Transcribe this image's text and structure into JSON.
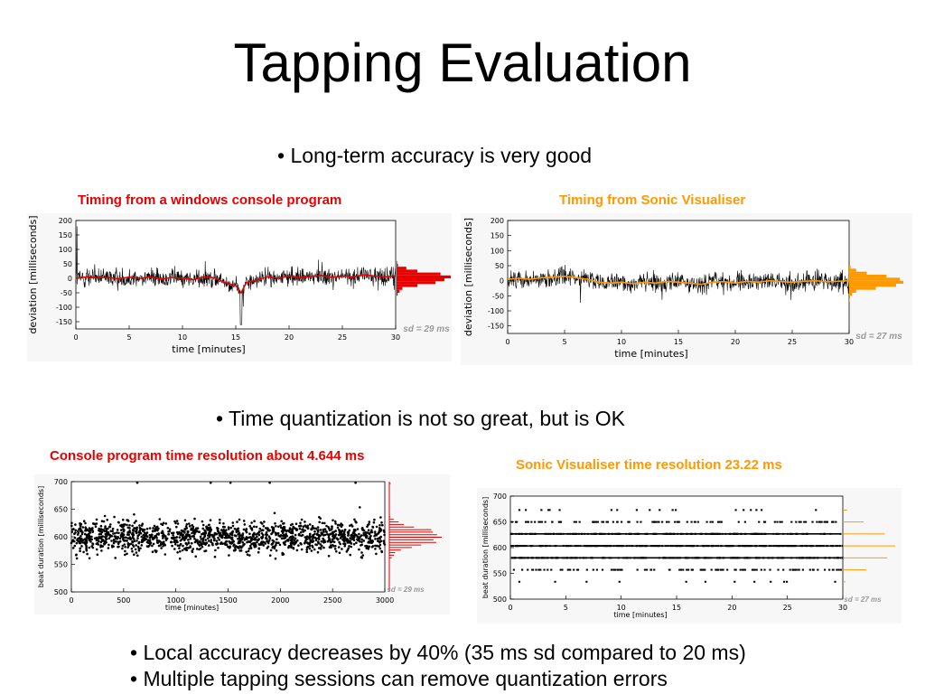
{
  "slide": {
    "title": "Tapping Evaluation",
    "bullet1": "• Long-term accuracy is very good",
    "bullet2": "• Time quantization is not so great, but is OK",
    "bullet3": "• Local accuracy decreases by 40% (35 ms sd compared to 20 ms)",
    "bullet4": "• Multiple tapping sessions can remove quantization errors"
  },
  "colors": {
    "red": "#e60000",
    "orange": "#ff9900",
    "black": "#000000"
  },
  "chart_data": [
    {
      "id": "console-deviation",
      "type": "line",
      "title": "Timing from a windows console program",
      "title_color": "#e60000",
      "xlabel": "time [minutes]",
      "ylabel": "deviation [milliseconds]",
      "xlim": [
        0,
        30
      ],
      "ylim": [
        -175,
        200
      ],
      "xticks": [
        "0",
        "5",
        "10",
        "15",
        "20",
        "25",
        "30"
      ],
      "yticks": [
        "200",
        "150",
        "100",
        "50",
        "0",
        "-50",
        "-100",
        "-150"
      ],
      "annotation": "sd = 29 ms",
      "smooth_color": "#e60000",
      "smooth_series": {
        "x": [
          0,
          1,
          2,
          3,
          4,
          5,
          6,
          7,
          8,
          9,
          10,
          11,
          12,
          13,
          14,
          15,
          15.5,
          16,
          17,
          18,
          19,
          20,
          21,
          22,
          23,
          24,
          25,
          26,
          27,
          28,
          29,
          30
        ],
        "y": [
          0,
          5,
          2,
          3,
          -2,
          4,
          0,
          5,
          -3,
          3,
          0,
          -5,
          5,
          2,
          -15,
          -25,
          -50,
          -15,
          -5,
          5,
          0,
          8,
          3,
          5,
          10,
          3,
          8,
          5,
          12,
          8,
          5,
          8
        ]
      }
    },
    {
      "id": "sonic-deviation",
      "type": "line",
      "title": "Timing from Sonic Visualiser",
      "title_color": "#ff9900",
      "xlabel": "time [minutes]",
      "ylabel": "deviation [milliseconds]",
      "xlim": [
        0,
        30
      ],
      "ylim": [
        -175,
        200
      ],
      "xticks": [
        "0",
        "5",
        "10",
        "15",
        "20",
        "25",
        "30"
      ],
      "yticks": [
        "200",
        "150",
        "100",
        "50",
        "0",
        "-50",
        "-100",
        "-150"
      ],
      "annotation": "sd = 27 ms",
      "smooth_color": "#ff9900",
      "smooth_series": {
        "x": [
          0,
          1,
          2,
          3,
          4,
          5,
          6,
          7,
          8,
          9,
          10,
          11,
          12,
          13,
          14,
          15,
          16,
          17,
          18,
          19,
          20,
          21,
          22,
          23,
          24,
          25,
          26,
          27,
          28,
          29,
          30
        ],
        "y": [
          5,
          8,
          5,
          10,
          12,
          15,
          10,
          5,
          -5,
          -8,
          -5,
          -10,
          -5,
          -8,
          -2,
          -5,
          -8,
          -12,
          -5,
          -3,
          -8,
          -2,
          -5,
          0,
          -3,
          -5,
          -2,
          0,
          -3,
          -2,
          0
        ]
      }
    },
    {
      "id": "console-resolution",
      "type": "scatter",
      "title": "Console program time resolution about 4.644 ms",
      "title_color": "#e60000",
      "xlabel": "time [minutes]",
      "ylabel": "beat duration [milliseconds]",
      "xlim": [
        0,
        3000
      ],
      "ylim": [
        500,
        700
      ],
      "xticks": [
        "0",
        "500",
        "1000",
        "1500",
        "2000",
        "2500",
        "3000"
      ],
      "yticks": [
        "700",
        "650",
        "600",
        "550",
        "500"
      ],
      "annotation": "sd = 29 ms",
      "center": 600,
      "quantum_ms": 4.644
    },
    {
      "id": "sonic-resolution",
      "type": "scatter",
      "title": "Sonic Visualiser time resolution 23.22 ms",
      "title_color": "#ff9900",
      "xlabel": "time [minutes]",
      "ylabel": "beat duration [milliseconds]",
      "xlim": [
        0,
        30
      ],
      "ylim": [
        500,
        700
      ],
      "xticks": [
        "0",
        "5",
        "10",
        "15",
        "20",
        "25",
        "30"
      ],
      "yticks": [
        "700",
        "650",
        "600",
        "550",
        "500"
      ],
      "annotation": "sd = 27 ms",
      "bands": {
        "y": [
          533.7,
          556.9,
          580.1,
          603.3,
          626.6,
          649.8,
          673.0
        ],
        "density": [
          0.05,
          0.45,
          0.85,
          1.0,
          0.8,
          0.4,
          0.08
        ]
      }
    }
  ]
}
